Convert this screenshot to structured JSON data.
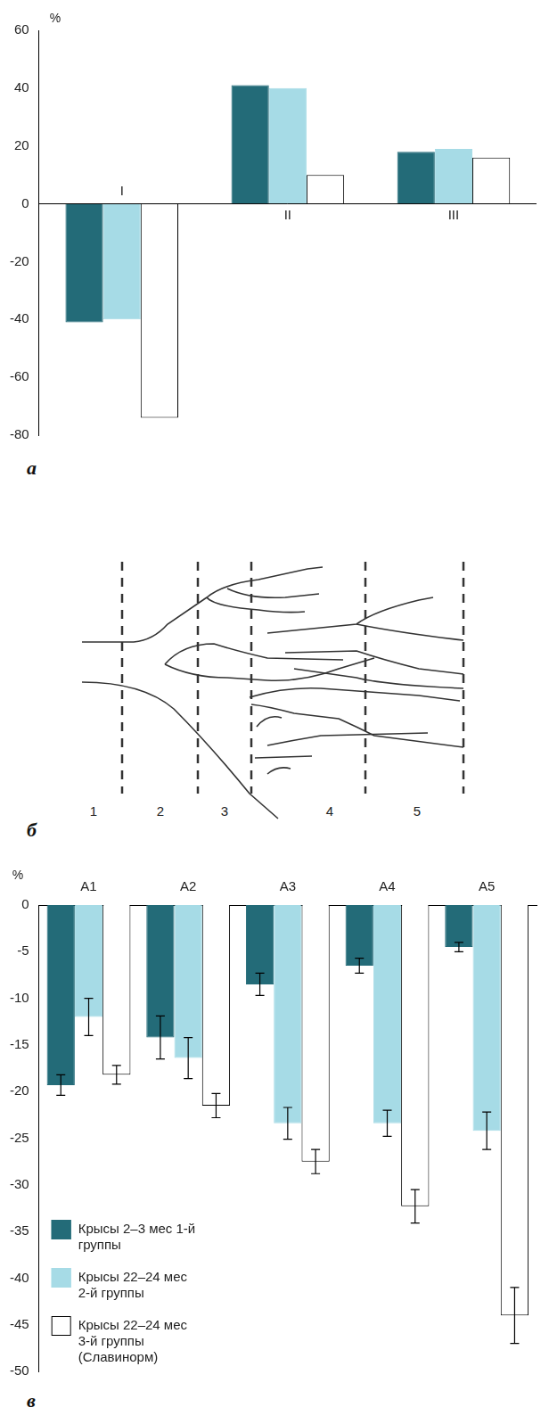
{
  "chart_data": [
    {
      "panel": "а",
      "type": "bar",
      "y_label": "%",
      "categories": [
        "I",
        "II",
        "III"
      ],
      "series": [
        {
          "color": "#236b78",
          "values": [
            -41,
            41,
            18
          ]
        },
        {
          "color": "#a6dbe6",
          "values": [
            -40,
            40,
            19
          ]
        },
        {
          "color": "#ffffff",
          "values": [
            -74,
            10,
            16
          ]
        }
      ],
      "ylim": [
        -80,
        60
      ],
      "yticks": [
        -80,
        -60,
        -40,
        -20,
        0,
        20,
        40,
        60
      ],
      "grid": false
    },
    {
      "panel": "в",
      "type": "bar",
      "y_label": "%",
      "categories": [
        "A1",
        "A2",
        "A3",
        "A4",
        "A5"
      ],
      "series": [
        {
          "name": "Крысы 2–3 мес 1-й группы",
          "color": "#236b78",
          "values": [
            -19.3,
            -14.2,
            -8.5,
            -6.5,
            -4.5
          ],
          "errors": [
            1.1,
            2.3,
            1.2,
            0.8,
            0.5
          ]
        },
        {
          "name": "Крысы 22–24 мес 2-й группы",
          "color": "#a6dbe6",
          "values": [
            -12,
            -16.4,
            -23.4,
            -23.4,
            -24.2
          ],
          "errors": [
            2,
            2.2,
            1.7,
            1.4,
            2
          ]
        },
        {
          "name": "Крысы 22–24 мес 3-й группы (Славинорм)",
          "color": "#ffffff",
          "values": [
            -18.2,
            -21.5,
            -27.5,
            -32.3,
            -44
          ],
          "errors": [
            1,
            1.3,
            1.3,
            1.8,
            3
          ]
        }
      ],
      "ylim": [
        -50,
        0
      ],
      "yticks": [
        0,
        -5,
        -10,
        -15,
        -20,
        -25,
        -30,
        -35,
        -40,
        -45,
        -50
      ],
      "grid": false,
      "legend": "bottom-left"
    }
  ],
  "diagram": {
    "panel": "б",
    "zones": [
      "1",
      "2",
      "3",
      "4",
      "5"
    ]
  }
}
